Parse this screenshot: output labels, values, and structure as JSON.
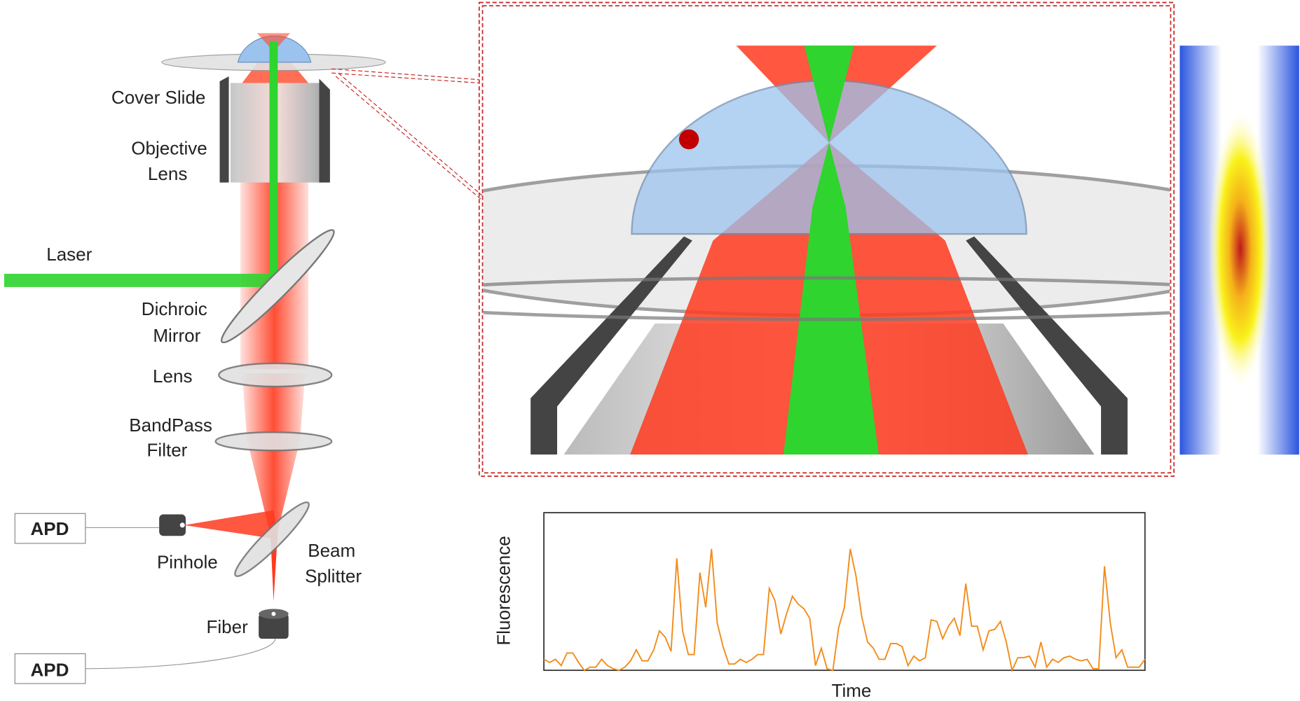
{
  "labels": {
    "cover_slide": "Cover Slide",
    "objective": [
      "Objective",
      "Lens"
    ],
    "laser": "Laser",
    "dichroic": [
      "Dichroic",
      "Mirror"
    ],
    "lens": "Lens",
    "bandpass": [
      "BandPass",
      "Filter"
    ],
    "apd_top": "APD",
    "pinhole": "Pinhole",
    "beam_splitter": [
      "Beam",
      "Splitter"
    ],
    "fiber": "Fiber",
    "apd_bottom": "APD"
  },
  "chart_data": {
    "type": "line",
    "xlabel": "Time",
    "ylabel": "Fluorescence",
    "color": "#f28c1a",
    "ylim": [
      0,
      100
    ],
    "values": [
      7,
      5,
      7,
      3,
      11,
      11,
      5,
      0,
      2,
      2,
      7,
      3,
      1,
      0,
      2,
      6,
      13,
      6,
      6,
      13,
      25,
      21,
      12,
      71,
      25,
      10,
      10,
      62,
      40,
      77,
      30,
      15,
      4,
      4,
      7,
      5,
      7,
      10,
      10,
      52,
      44,
      23,
      36,
      47,
      42,
      39,
      33,
      3,
      14,
      1,
      0,
      27,
      40,
      77,
      60,
      34,
      18,
      14,
      7,
      7,
      17,
      17,
      15,
      3,
      9,
      6,
      8,
      32,
      31,
      20,
      28,
      33,
      22,
      55,
      28,
      28,
      13,
      25,
      26,
      31,
      18,
      0,
      8,
      8,
      9,
      2,
      18,
      2,
      7,
      5,
      8,
      9,
      7,
      6,
      7,
      1,
      1,
      66,
      30,
      8,
      13,
      2,
      2,
      2,
      7
    ]
  }
}
